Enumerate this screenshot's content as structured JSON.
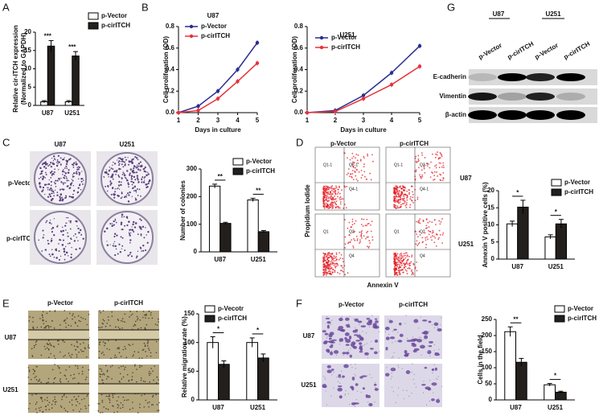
{
  "chart_data": [
    {
      "type": "bar",
      "categories": [
        "U87",
        "U251"
      ],
      "series": [
        {
          "name": "p-Vector",
          "color": "#ffffff",
          "values": [
            1,
            1
          ],
          "errors": [
            0.3,
            0.3
          ]
        },
        {
          "name": "p-cirITCH",
          "color": "#231f1c",
          "values": [
            16.2,
            13.5
          ],
          "errors": [
            1.5,
            1.2
          ]
        }
      ],
      "ylim": [
        0,
        20
      ],
      "yticks": [
        0,
        5,
        10,
        15,
        20
      ],
      "y_label": [
        "Relative cir-ITCH expression",
        "(Normalized to GAPDH)"
      ],
      "annotations": [
        "***",
        "***"
      ]
    },
    {
      "type": "line",
      "title": "U87",
      "x": [
        1,
        2,
        3,
        4,
        5
      ],
      "xlim": [
        1,
        5
      ],
      "xticks": [
        1,
        2,
        3,
        4,
        5
      ],
      "series": [
        {
          "name": "p-Vector",
          "color": "#2b2e8f",
          "values": [
            0,
            0.06,
            0.2,
            0.4,
            0.65
          ]
        },
        {
          "name": "p-cirITCH",
          "color": "#e8313a",
          "values": [
            0,
            0.02,
            0.13,
            0.29,
            0.46
          ]
        }
      ],
      "ylim": [
        0,
        0.8
      ],
      "yticks": [
        {
          "value": 0,
          "label": "0.0"
        },
        0.2,
        0.4,
        0.6,
        0.8
      ],
      "x_label": "Days in culture",
      "y_label": "Cell proliferation (OD)"
    },
    {
      "type": "line",
      "title": "U251",
      "x": [
        1,
        2,
        3,
        4,
        5
      ],
      "xlim": [
        1,
        5
      ],
      "xticks": [
        1,
        2,
        3,
        4,
        5
      ],
      "series": [
        {
          "name": "p-Vector",
          "color": "#2b2e8f",
          "values": [
            0,
            0.02,
            0.16,
            0.37,
            0.62
          ]
        },
        {
          "name": "p-cirITCH",
          "color": "#e8313a",
          "values": [
            0,
            0.01,
            0.13,
            0.26,
            0.43
          ]
        }
      ],
      "ylim": [
        0,
        0.8
      ],
      "yticks": [
        {
          "value": 0,
          "label": "0.0"
        },
        0.2,
        0.4,
        0.6,
        0.8
      ],
      "x_label": "Days in culture",
      "y_label": "Cell proliferation (OD)"
    },
    {
      "type": "bar",
      "categories": [
        "U87",
        "U251"
      ],
      "series": [
        {
          "name": "p-Vector",
          "color": "#ffffff",
          "values": [
            238,
            188
          ],
          "errors": [
            7,
            6
          ]
        },
        {
          "name": "p-cirITCH",
          "color": "#231f1c",
          "values": [
            103,
            73
          ],
          "errors": [
            4,
            4
          ]
        }
      ],
      "ylim": [
        0,
        300
      ],
      "yticks": [
        0,
        100,
        200,
        300
      ],
      "y_label": "Number of colonies",
      "annotations": [
        "**",
        "**"
      ]
    },
    {
      "type": "bar",
      "categories": [
        "U87",
        "U251"
      ],
      "series": [
        {
          "name": "p-Vector",
          "color": "#ffffff",
          "values": [
            10.3,
            6.5
          ],
          "errors": [
            0.8,
            0.6
          ]
        },
        {
          "name": "p-cirITCH",
          "color": "#231f1c",
          "values": [
            15.2,
            10.3
          ],
          "errors": [
            2,
            1.3
          ]
        }
      ],
      "ylim": [
        0,
        20
      ],
      "yticks": [
        0,
        5,
        10,
        15,
        20
      ],
      "y_label": "Annexin V positive cells (%)",
      "annotations": [
        "*",
        "*"
      ]
    },
    {
      "type": "bar",
      "categories": [
        "U87",
        "U251"
      ],
      "series": [
        {
          "name": "p-Vecotr",
          "color": "#ffffff",
          "values": [
            100,
            100
          ],
          "errors": [
            10,
            8
          ]
        },
        {
          "name": "p-cirITCH",
          "color": "#231f1c",
          "values": [
            62,
            73
          ],
          "errors": [
            6,
            7
          ]
        }
      ],
      "ylim": [
        0,
        150
      ],
      "yticks": [
        0,
        50,
        100,
        150
      ],
      "y_label": "Relative migration rate (%)",
      "annotations": [
        "*",
        "*"
      ]
    },
    {
      "type": "bar",
      "categories": [
        "U87",
        "U251"
      ],
      "series": [
        {
          "name": "p-Vector",
          "color": "#ffffff",
          "values": [
            212,
            47
          ],
          "errors": [
            15,
            4
          ]
        },
        {
          "name": "p-cirITCH",
          "color": "#231f1c",
          "values": [
            117,
            24
          ],
          "errors": [
            12,
            3
          ]
        }
      ],
      "ylim": [
        0,
        250
      ],
      "yticks": [
        0,
        50,
        100,
        150,
        200,
        250
      ],
      "y_label": "Cells in the field",
      "annotations": [
        "**",
        "*"
      ]
    }
  ],
  "figure": {
    "panel_labels": [
      "A",
      "B",
      "G",
      "C",
      "D",
      "E",
      "F"
    ],
    "blot": {
      "cell_lines": [
        "U87",
        "U251"
      ],
      "lanes": [
        "p-Vector",
        "p-cirITCH",
        "p-Vector",
        "p-cirITCH"
      ],
      "proteins": [
        "E-cadherin",
        "Vimentin",
        "β-actin"
      ]
    },
    "colony": {
      "columns": [
        "U87",
        "U251"
      ],
      "rows": [
        "p-Vector",
        "p-cirITCH"
      ]
    },
    "flow": {
      "columns": [
        "p-Vector",
        "p-cirITCH"
      ],
      "rows": [
        "U87",
        "U251"
      ],
      "y_label": "Propidium Iodide",
      "x_label": "Annexin V",
      "quadrants": [
        [
          "Q1-1",
          "Q2-1",
          "Q4-1"
        ],
        [
          "Q1-1",
          "Q2-1",
          "Q4-1"
        ],
        [
          "Q1",
          "Q2",
          "Q4"
        ],
        [
          "Q1",
          "Q2",
          "Q4"
        ]
      ]
    },
    "migration": {
      "columns": [
        "p-Vector",
        "p-cirITCH"
      ],
      "rows": [
        "U87",
        "U251"
      ]
    },
    "invasion": {
      "columns": [
        "p-Vector",
        "p-cirITCH"
      ],
      "rows": [
        "U87",
        "U251"
      ]
    }
  }
}
